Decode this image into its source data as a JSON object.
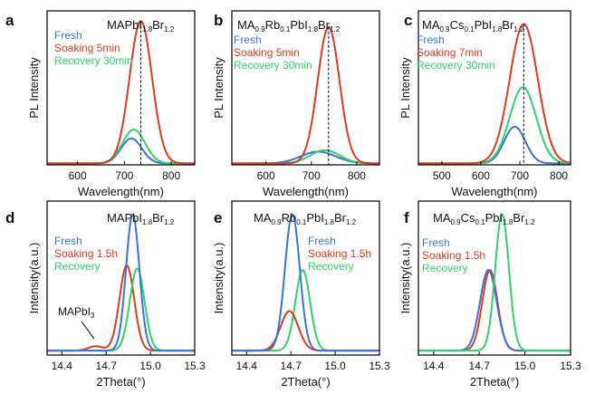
{
  "colors": {
    "fresh": "#3a73d6",
    "soaking": "#e03a1e",
    "recovery": "#2fd26a"
  },
  "chart_data": [
    {
      "id": "a",
      "letter": "a",
      "type": "line",
      "title_parts": [
        "MAPbI",
        "1.8",
        "Br",
        "1.2"
      ],
      "xlabel": "Wavelength(nm)",
      "ylabel": "PL Intensity",
      "xlim": [
        535,
        850
      ],
      "ylim": [
        0,
        1.05
      ],
      "xticks": [
        600,
        700,
        800
      ],
      "dashed_x": 735,
      "legend": [
        "Fresh",
        "Soaking   5min",
        "Recovery 30min"
      ],
      "series": [
        {
          "key": "fresh",
          "peak": 715,
          "height": 0.17,
          "width": 22,
          "base": 0.01
        },
        {
          "key": "recovery",
          "peak": 720,
          "height": 0.23,
          "width": 24,
          "base": 0.01
        },
        {
          "key": "soaking",
          "peak": 735,
          "height": 0.97,
          "width": 24,
          "base": 0.01
        }
      ]
    },
    {
      "id": "b",
      "letter": "b",
      "type": "line",
      "title_parts": [
        "MA",
        "0.9",
        "Rb",
        "0.1",
        "PbI",
        "1.8",
        "Br",
        "1.2"
      ],
      "xlabel": "Wavelength(nm)",
      "ylabel": "PL Intensity",
      "xlim": [
        525,
        850
      ],
      "ylim": [
        0,
        1.05
      ],
      "xticks": [
        600,
        700,
        800
      ],
      "dashed_x": 738,
      "legend": [
        "Fresh",
        "Soaking     5min",
        "Recovery 30min"
      ],
      "series": [
        {
          "key": "fresh",
          "peak": 715,
          "height": 0.08,
          "width": 38,
          "base": 0.01
        },
        {
          "key": "recovery",
          "peak": 730,
          "height": 0.09,
          "width": 32,
          "base": 0.01
        },
        {
          "key": "soaking",
          "peak": 738,
          "height": 0.93,
          "width": 24,
          "base": 0.01
        }
      ]
    },
    {
      "id": "c",
      "letter": "c",
      "type": "line",
      "title_parts": [
        "MA",
        "0.9",
        "Cs",
        "0.1",
        "PbI",
        "1.8",
        "Br",
        "1.2"
      ],
      "xlabel": "Wavelength(nm)",
      "ylabel": "PL Intensity",
      "xlim": [
        440,
        830
      ],
      "ylim": [
        0,
        1.05
      ],
      "xticks": [
        500,
        600,
        700,
        800
      ],
      "dashed_x": 710,
      "legend": [
        "Fresh",
        "Soaking    7min",
        "Recovery 30min"
      ],
      "series": [
        {
          "key": "fresh",
          "peak": 687,
          "height": 0.25,
          "width": 27,
          "base": 0.01
        },
        {
          "key": "recovery",
          "peak": 708,
          "height": 0.52,
          "width": 34,
          "base": 0.01
        },
        {
          "key": "soaking",
          "peak": 710,
          "height": 0.95,
          "width": 36,
          "base": 0.01
        }
      ]
    },
    {
      "id": "d",
      "letter": "d",
      "type": "line",
      "title_parts": [
        "MAPbI",
        "1.8",
        "Br",
        "1.2"
      ],
      "xlabel": "2Theta(°)",
      "ylabel": "Intensity(a.u.)",
      "xlim": [
        14.3,
        15.3
      ],
      "ylim": [
        0,
        1.05
      ],
      "xticks": [
        14.4,
        14.7,
        15.0,
        15.3
      ],
      "legend": [
        "Fresh",
        "Soaking 1.5h",
        "Recovery"
      ],
      "annotation": [
        "MAPbI",
        "3"
      ],
      "series": [
        {
          "key": "soaking",
          "peak": 14.84,
          "height": 0.58,
          "width": 0.05,
          "base": 0.03,
          "peak2": 14.63,
          "height2": 0.03,
          "width2": 0.05
        },
        {
          "key": "recovery",
          "peak": 14.91,
          "height": 0.56,
          "width": 0.05,
          "base": 0.03
        },
        {
          "key": "fresh",
          "peak": 14.88,
          "height": 0.93,
          "width": 0.045,
          "base": 0.03
        }
      ]
    },
    {
      "id": "e",
      "letter": "e",
      "type": "line",
      "title_parts": [
        "MA",
        "0.9",
        "Rb",
        "0.1",
        "PbI",
        "1.8",
        "Br",
        "1.2"
      ],
      "xlabel": "2Theta(°)",
      "ylabel": "Intensity(a.u.)",
      "xlim": [
        14.3,
        15.3
      ],
      "ylim": [
        0,
        1.05
      ],
      "xticks": [
        14.4,
        14.7,
        15.0,
        15.3
      ],
      "legend": [
        "Fresh",
        "Soaking 1.5h",
        "Recovery"
      ],
      "series": [
        {
          "key": "recovery",
          "peak": 14.78,
          "height": 0.55,
          "width": 0.05,
          "base": 0.03
        },
        {
          "key": "soaking",
          "peak": 14.69,
          "height": 0.27,
          "width": 0.06,
          "base": 0.03
        },
        {
          "key": "fresh",
          "peak": 14.71,
          "height": 0.93,
          "width": 0.05,
          "base": 0.03
        }
      ]
    },
    {
      "id": "f",
      "letter": "f",
      "type": "line",
      "title_parts": [
        "MA",
        "0.9",
        "Cs",
        "0.1",
        "PbI",
        "1.8",
        "Br",
        "1.2"
      ],
      "xlabel": "2Theta(°)",
      "ylabel": "Intensity(a.u.)",
      "xlim": [
        14.3,
        15.3
      ],
      "ylim": [
        0,
        1.05
      ],
      "xticks": [
        14.4,
        14.7,
        15.0,
        15.3
      ],
      "legend": [
        "Fresh",
        "Soaking 1.5h",
        "Recovery"
      ],
      "series": [
        {
          "key": "soaking",
          "peak": 14.77,
          "height": 0.55,
          "width": 0.05,
          "base": 0.03
        },
        {
          "key": "fresh",
          "peak": 14.76,
          "height": 0.55,
          "width": 0.055,
          "base": 0.03
        },
        {
          "key": "recovery",
          "peak": 14.85,
          "height": 0.93,
          "width": 0.045,
          "base": 0.03
        }
      ]
    }
  ]
}
